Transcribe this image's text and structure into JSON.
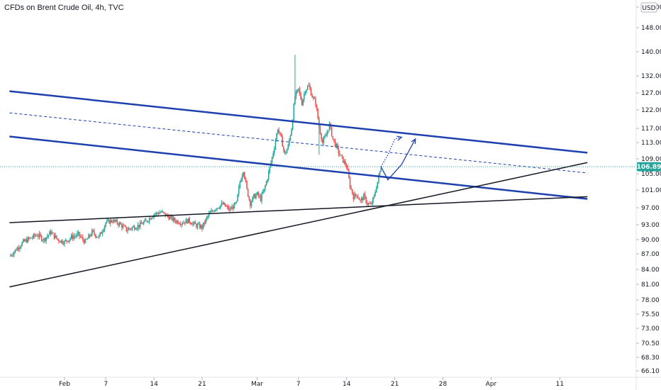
{
  "chart_data": {
    "type": "candlestick",
    "title": "CFDs on Brent Crude Oil, 4h, TVC",
    "currency": "USD",
    "current_price": "106.89",
    "y_ticks": [
      "152.00",
      "148.00",
      "140.00",
      "132.00",
      "127.00",
      "122.00",
      "117.00",
      "113.00",
      "109.00",
      "105.00",
      "101.00",
      "97.00",
      "93.00",
      "90.00",
      "87.00",
      "84.00",
      "81.00",
      "78.00",
      "75.50",
      "73.00",
      "70.50",
      "68.30",
      "66.10"
    ],
    "x_ticks": [
      {
        "label": "Feb",
        "t": 4
      },
      {
        "label": "7",
        "t": 10
      },
      {
        "label": "14",
        "t": 17
      },
      {
        "label": "21",
        "t": 24
      },
      {
        "label": "Mar",
        "t": 32
      },
      {
        "label": "7",
        "t": 38
      },
      {
        "label": "14",
        "t": 45
      },
      {
        "label": "21",
        "t": 52
      },
      {
        "label": "28",
        "t": 59
      },
      {
        "label": "Apr",
        "t": 66
      },
      {
        "label": "11",
        "t": 76
      }
    ],
    "colors": {
      "up": "#26a69a",
      "down": "#ef5350",
      "channel": "#1e40af",
      "trend": "#131722",
      "price_tag": "#26a69a"
    },
    "path": [
      [
        -4,
        86.5
      ],
      [
        -3,
        88
      ],
      [
        -2,
        89.5
      ],
      [
        0,
        91
      ],
      [
        1,
        90
      ],
      [
        2,
        91.5
      ],
      [
        3,
        90
      ],
      [
        4,
        89.5
      ],
      [
        5,
        90.5
      ],
      [
        6,
        91
      ],
      [
        7,
        89.5
      ],
      [
        8,
        91.5
      ],
      [
        9,
        90.5
      ],
      [
        10,
        93.5
      ],
      [
        11,
        94
      ],
      [
        12,
        93.2
      ],
      [
        13,
        92
      ],
      [
        14,
        92.5
      ],
      [
        15,
        93
      ],
      [
        16,
        94
      ],
      [
        17,
        95.5
      ],
      [
        18,
        96
      ],
      [
        19,
        95
      ],
      [
        20,
        94
      ],
      [
        21,
        93.5
      ],
      [
        22,
        94
      ],
      [
        23,
        93
      ],
      [
        24,
        92.5
      ],
      [
        25,
        95.5
      ],
      [
        26,
        97
      ],
      [
        27,
        97.8
      ],
      [
        28,
        96.5
      ],
      [
        29,
        98
      ],
      [
        29.5,
        103
      ],
      [
        30,
        106
      ],
      [
        30.5,
        101
      ],
      [
        31,
        98
      ],
      [
        31.5,
        99.5
      ],
      [
        32,
        100
      ],
      [
        32.5,
        99
      ],
      [
        33,
        101
      ],
      [
        33.5,
        104
      ],
      [
        34,
        108
      ],
      [
        34.5,
        112
      ],
      [
        35,
        117
      ],
      [
        35.5,
        114
      ],
      [
        36,
        110
      ],
      [
        36.5,
        112
      ],
      [
        37,
        117
      ],
      [
        37.5,
        126
      ],
      [
        38,
        128
      ],
      [
        38.5,
        124
      ],
      [
        39,
        128
      ],
      [
        39.5,
        129
      ],
      [
        40,
        126
      ],
      [
        40.5,
        124
      ],
      [
        41,
        117.5
      ],
      [
        41.5,
        113
      ],
      [
        42,
        115
      ],
      [
        42.5,
        118
      ],
      [
        43,
        114
      ],
      [
        43.5,
        112
      ],
      [
        44,
        110
      ],
      [
        44.5,
        108.5
      ],
      [
        45,
        107
      ],
      [
        45.5,
        102
      ],
      [
        46,
        99.5
      ],
      [
        46.5,
        100
      ],
      [
        47,
        98.5
      ],
      [
        47.5,
        99.5
      ],
      [
        48,
        98
      ],
      [
        48.5,
        97.5
      ],
      [
        49,
        99.5
      ],
      [
        49.5,
        103
      ],
      [
        50,
        106.89
      ]
    ],
    "projection_solid": [
      [
        50,
        106.89
      ],
      [
        51,
        103.5
      ],
      [
        53,
        107.5
      ],
      [
        55,
        114
      ]
    ],
    "projection_dotted": [
      [
        50,
        106.89
      ],
      [
        51,
        110
      ],
      [
        52,
        114
      ],
      [
        53,
        114.5
      ]
    ],
    "channel_lines": [
      {
        "p1": [
          -4,
          127.5
        ],
        "p2": [
          80,
          110.5
        ],
        "dashed": false
      },
      {
        "p1": [
          -4,
          121.2
        ],
        "p2": [
          80,
          105.2
        ],
        "dashed": true
      },
      {
        "p1": [
          -4,
          114.7
        ],
        "p2": [
          80,
          99
        ]
      }
    ],
    "trend_lines": [
      {
        "p1": [
          -4,
          93.5
        ],
        "p2": [
          80,
          99.5
        ]
      },
      {
        "p1": [
          -4,
          80.5
        ],
        "p2": [
          80,
          108
        ]
      }
    ],
    "y_range_note": "non-linear (log-like) price scale"
  }
}
